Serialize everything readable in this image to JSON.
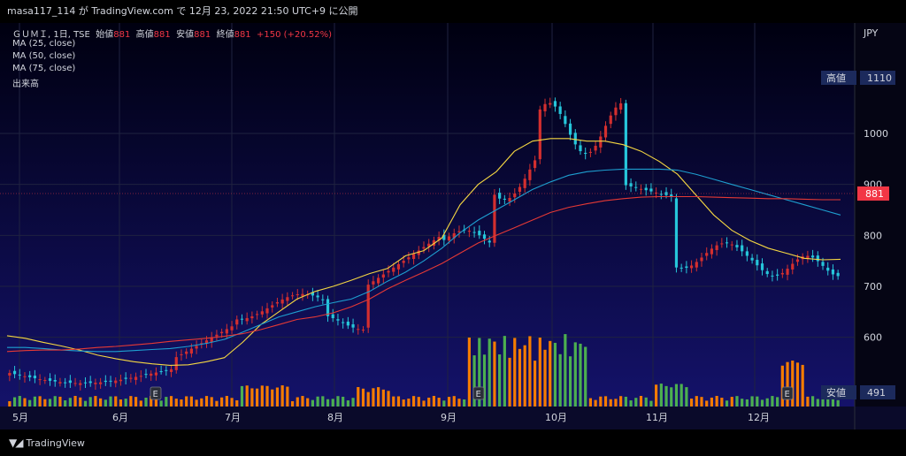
{
  "header": {
    "publish_line": "masa117_114 が TradingView.com で 12月 23, 2022 21:50 UTC+9 に公開"
  },
  "legend": {
    "symbol": "ＧＵＭＩ, 1日, TSE",
    "open_label": "始値",
    "open": "881",
    "high_label": "高値",
    "high": "881",
    "low_label": "安値",
    "low": "881",
    "close_label": "終値",
    "close": "881",
    "change": "+150 (+20.52%)",
    "ma25": "MA (25, close)",
    "ma50": "MA (50, close)",
    "ma75": "MA (75, close)",
    "volume": "出来高"
  },
  "price_axis": {
    "currency": "JPY",
    "high_tag_label": "高値",
    "high_tag_value": "1110",
    "last_value": "881",
    "low_tag_label": "安値",
    "low_tag_value": "491"
  },
  "footer": {
    "brand": "TradingView"
  },
  "colors": {
    "up": "#f23645",
    "down": "#22ab94",
    "up_body": "#d32f2f",
    "down_body": "#26c6da",
    "ma25": "#f5d742",
    "ma50": "#1e9fd0",
    "ma75": "#e53935",
    "vol_up": "#f57c00",
    "vol_down": "#4caf50",
    "background_top": "#000010",
    "background_bottom": "#14126a"
  },
  "chart_data": {
    "type": "candlestick",
    "title": "ＧＵＭＩ, 1日, TSE",
    "y_ticks": [
      600,
      700,
      800,
      900,
      1000
    ],
    "ylim": [
      480,
      1140
    ],
    "x_labels": [
      "5月",
      "6月",
      "7月",
      "8月",
      "9月",
      "10月",
      "11月",
      "12月"
    ],
    "earnings_markers": [
      "6月",
      "9月",
      "12月"
    ],
    "earnings_label": "E",
    "price_high": 1110,
    "price_low": 491,
    "last_close": 881,
    "series": [
      {
        "name": "MA (25, close)",
        "values": [
          603,
          598,
          590,
          583,
          575,
          565,
          558,
          552,
          548,
          545,
          546,
          552,
          560,
          590,
          625,
          650,
          675,
          690,
          700,
          712,
          725,
          735,
          760,
          770,
          795,
          860,
          900,
          925,
          965,
          985,
          990,
          990,
          985,
          985,
          978,
          965,
          945,
          920,
          880,
          840,
          810,
          790,
          775,
          765,
          755,
          752,
          753
        ]
      },
      {
        "name": "MA (50, close)",
        "values": [
          580,
          580,
          578,
          575,
          573,
          572,
          572,
          574,
          576,
          578,
          582,
          588,
          596,
          610,
          625,
          640,
          650,
          660,
          668,
          675,
          690,
          710,
          728,
          750,
          775,
          805,
          830,
          850,
          870,
          890,
          905,
          918,
          925,
          928,
          930,
          930,
          930,
          928,
          920,
          910,
          900,
          890,
          880,
          870,
          860,
          850,
          840
        ]
      },
      {
        "name": "MA (75, close)",
        "values": [
          572,
          574,
          575,
          575,
          577,
          580,
          582,
          585,
          588,
          592,
          595,
          598,
          602,
          607,
          615,
          625,
          635,
          640,
          648,
          660,
          675,
          695,
          712,
          728,
          745,
          765,
          785,
          800,
          815,
          830,
          845,
          855,
          862,
          868,
          872,
          875,
          876,
          876,
          876,
          875,
          874,
          873,
          872,
          872,
          871,
          870,
          870
        ]
      }
    ]
  }
}
